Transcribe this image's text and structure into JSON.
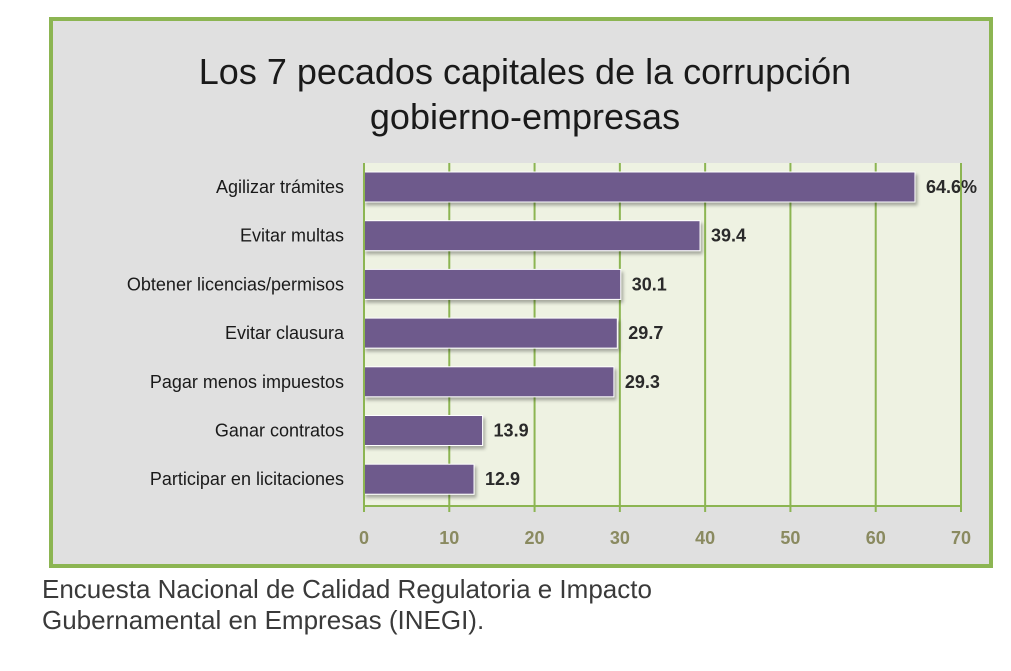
{
  "chart_data": {
    "type": "bar",
    "orientation": "horizontal",
    "title_lines": [
      "Los 7 pecados capitales de la corrupción",
      "gobierno-empresas"
    ],
    "categories": [
      "Agilizar trámites",
      "Evitar multas",
      "Obtener licencias/permisos",
      "Evitar clausura",
      "Pagar menos impuestos",
      "Ganar contratos",
      "Participar en licitaciones"
    ],
    "values": [
      64.6,
      39.4,
      30.1,
      29.7,
      29.3,
      13.9,
      12.9
    ],
    "value_labels": [
      "64.6%",
      "39.4",
      "30.1",
      "29.7",
      "29.3",
      "13.9",
      "12.9"
    ],
    "xlim": [
      0,
      70
    ],
    "x_ticks": [
      0,
      10,
      20,
      30,
      40,
      50,
      60,
      70
    ],
    "grid": "vertical",
    "colors": {
      "bar": "#6e5a8c",
      "plot_background": "#eef2e2",
      "grid": "#8cb552",
      "frame_border": "#8cb552",
      "frame_background": "#e0e0e0",
      "tick_label": "#8a8a60"
    }
  },
  "source_lines": [
    "Encuesta Nacional de Calidad Regulatoria e Impacto",
    "Gubernamental en Empresas (INEGI)."
  ]
}
